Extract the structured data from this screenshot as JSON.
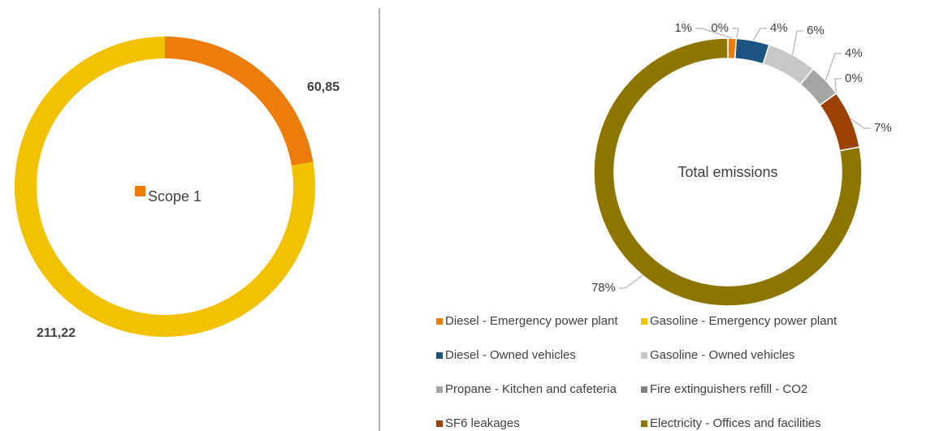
{
  "chart_data": [
    {
      "type": "donut",
      "categories": [
        "Scope 1",
        null
      ],
      "values": [
        60.85,
        211.22
      ],
      "value_labels": [
        "60,85",
        "211,22"
      ],
      "colors": [
        "#ED7D0A",
        "#F2C200"
      ]
    },
    {
      "type": "donut",
      "title": "Total emissions",
      "categories": [
        "Diesel - Emergency power plant",
        "Gasoline - Emergency power plant",
        "Diesel - Owned vehicles",
        "Gasoline - Owned vehicles",
        "Propane - Kitchen and cafeteria",
        "Fire extinguishers refill - CO2",
        "SF6 leakages",
        "Electricity - Offices and facilities"
      ],
      "values": [
        1,
        0,
        4,
        6,
        4,
        0,
        7,
        78
      ],
      "value_labels": [
        "1%",
        "0%",
        "4%",
        "6%",
        "4%",
        "0%",
        "7%",
        "78%"
      ],
      "colors": [
        "#ED7D0A",
        "#F2C200",
        "#1C5480",
        "#C8C8C8",
        "#A5A5A5",
        "#7F7F7F",
        "#9C4100",
        "#8C7600"
      ]
    }
  ]
}
